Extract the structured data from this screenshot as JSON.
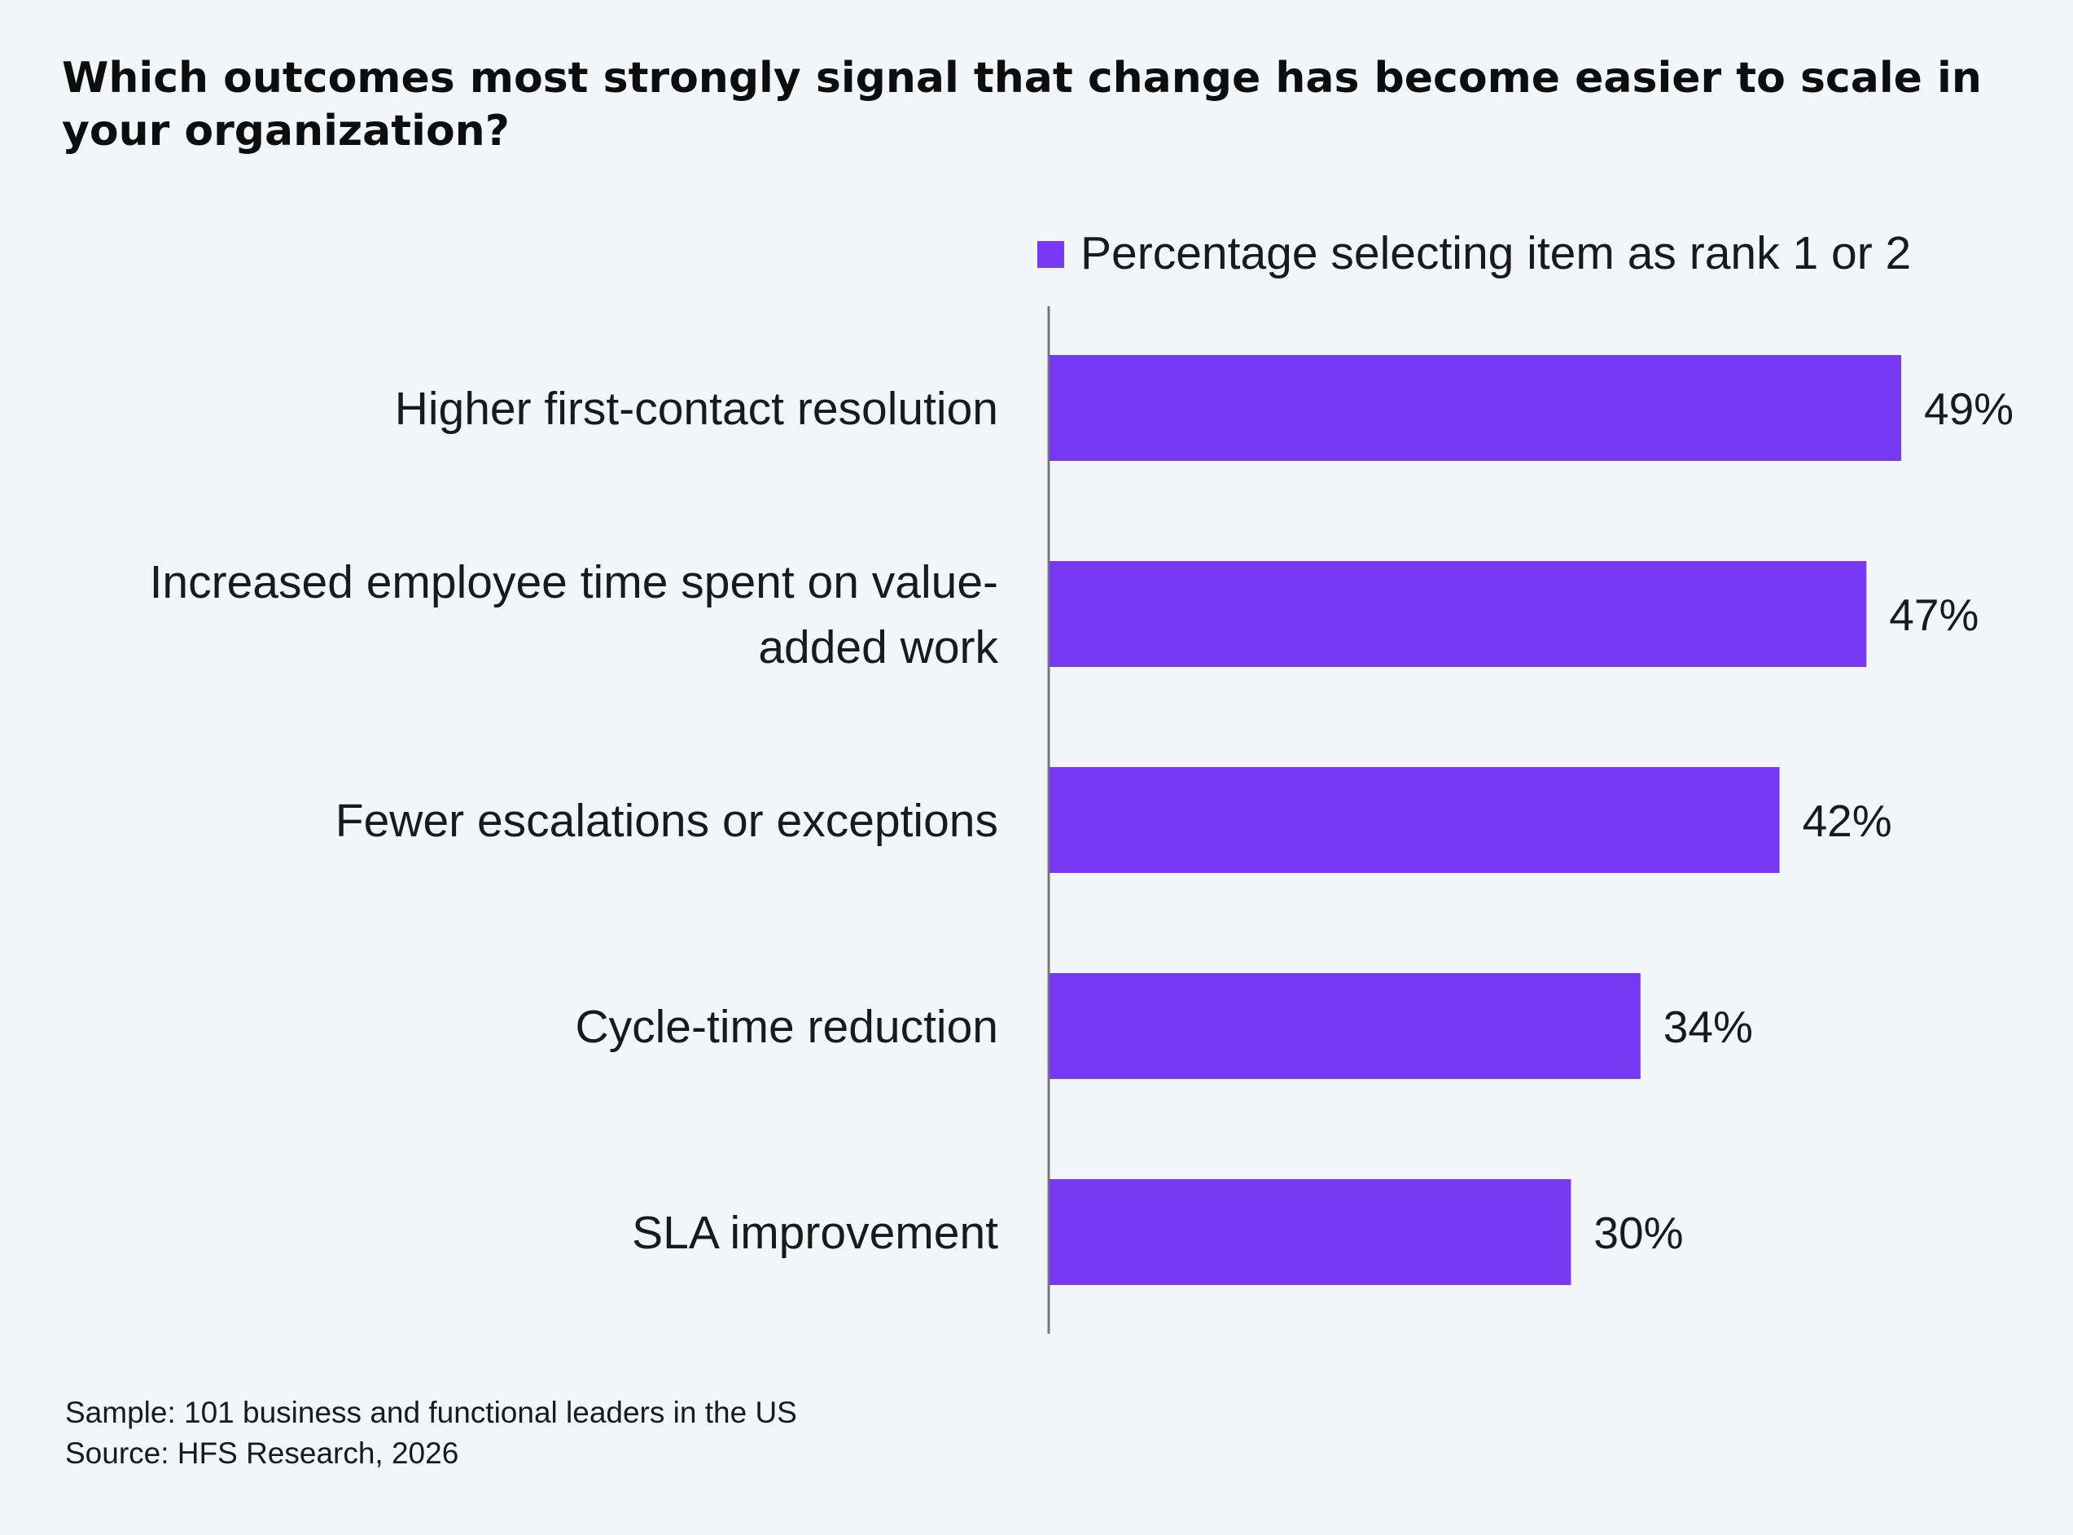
{
  "chart_data": {
    "type": "bar",
    "orientation": "horizontal",
    "title": "Which outcomes most strongly signal that change has become easier to scale in your organization?",
    "categories": [
      "Higher first-contact resolution",
      "Increased employee time spent on value-added work",
      "Fewer escalations or exceptions",
      "Cycle-time reduction",
      "SLA improvement"
    ],
    "category_lines": [
      [
        "Higher first-contact resolution"
      ],
      [
        "Increased employee time spent on value-",
        "added work"
      ],
      [
        "Fewer escalations or exceptions"
      ],
      [
        "Cycle-time reduction"
      ],
      [
        "SLA improvement"
      ]
    ],
    "series": [
      {
        "name": "Percentage selecting item as rank 1 or 2",
        "values": [
          49,
          47,
          42,
          34,
          30
        ],
        "color": "#7638f0"
      }
    ],
    "value_labels": [
      "49%",
      "47%",
      "42%",
      "34%",
      "30%"
    ],
    "xlim": [
      0,
      50
    ],
    "legend_position": "top-right",
    "grid": false
  },
  "footnotes": {
    "sample": "Sample: 101 business and functional leaders in the US",
    "source": "Source: HFS Research, 2026"
  },
  "colors": {
    "background": "#f3f6f9",
    "bar": "#7638f0",
    "axis": "#777777"
  }
}
